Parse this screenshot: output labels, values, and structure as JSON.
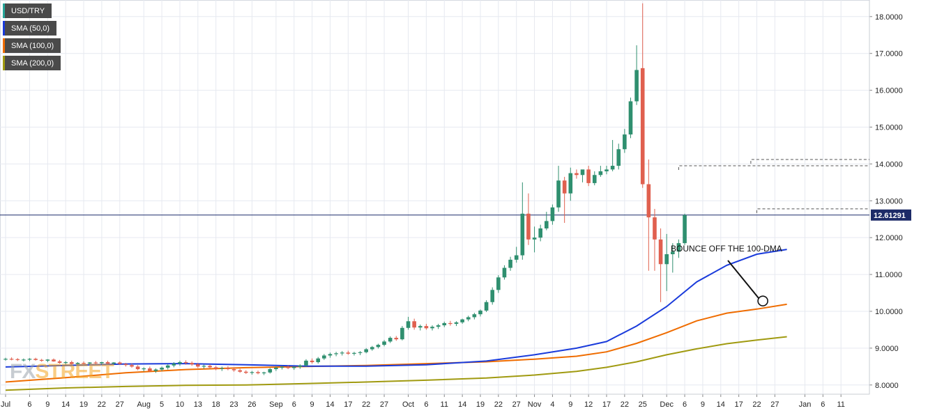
{
  "legend": {
    "items": [
      {
        "label": "USD/TRY",
        "color": "#26a69a"
      },
      {
        "label": "SMA (50,0)",
        "color": "#1a3bdb"
      },
      {
        "label": "SMA (100,0)",
        "color": "#ef6c00"
      },
      {
        "label": "SMA (200,0)",
        "color": "#a09a10"
      }
    ]
  },
  "logo": {
    "prefix": "FX",
    "suffix": "STREET"
  },
  "colors": {
    "up": "#2f8f6f",
    "down": "#e0604f",
    "grid": "#e6e9f0",
    "axis_text": "#222222",
    "price_line": "#1a2a6c",
    "price_label_bg": "#1d2b68"
  },
  "chart_data": {
    "type": "candlestick",
    "title": "",
    "xlabel": "",
    "ylabel": "",
    "ylim": [
      7.75,
      18.45
    ],
    "y_ticks": [
      "8.0000",
      "9.0000",
      "10.0000",
      "11.0000",
      "12.0000",
      "13.0000",
      "14.0000",
      "15.0000",
      "16.0000",
      "17.0000",
      "18.0000"
    ],
    "x_ticks": [
      {
        "label": "Jul",
        "index": 0
      },
      {
        "label": "6",
        "index": 4
      },
      {
        "label": "9",
        "index": 7
      },
      {
        "label": "14",
        "index": 10
      },
      {
        "label": "19",
        "index": 13
      },
      {
        "label": "22",
        "index": 16
      },
      {
        "label": "27",
        "index": 19
      },
      {
        "label": "Aug",
        "index": 23
      },
      {
        "label": "5",
        "index": 26
      },
      {
        "label": "10",
        "index": 29
      },
      {
        "label": "13",
        "index": 32
      },
      {
        "label": "18",
        "index": 35
      },
      {
        "label": "23",
        "index": 38
      },
      {
        "label": "26",
        "index": 41
      },
      {
        "label": "Sep",
        "index": 45
      },
      {
        "label": "6",
        "index": 48
      },
      {
        "label": "9",
        "index": 51
      },
      {
        "label": "14",
        "index": 54
      },
      {
        "label": "17",
        "index": 57
      },
      {
        "label": "22",
        "index": 60
      },
      {
        "label": "27",
        "index": 63
      },
      {
        "label": "Oct",
        "index": 67
      },
      {
        "label": "6",
        "index": 70
      },
      {
        "label": "11",
        "index": 73
      },
      {
        "label": "14",
        "index": 76
      },
      {
        "label": "19",
        "index": 79
      },
      {
        "label": "22",
        "index": 82
      },
      {
        "label": "27",
        "index": 85
      },
      {
        "label": "Nov",
        "index": 88
      },
      {
        "label": "4",
        "index": 91
      },
      {
        "label": "9",
        "index": 94
      },
      {
        "label": "12",
        "index": 97
      },
      {
        "label": "17",
        "index": 100
      },
      {
        "label": "22",
        "index": 103
      },
      {
        "label": "25",
        "index": 106
      },
      {
        "label": "Dec",
        "index": 110
      },
      {
        "label": "6",
        "index": 113
      },
      {
        "label": "9",
        "index": 116
      },
      {
        "label": "14",
        "index": 119
      },
      {
        "label": "17",
        "index": 122
      },
      {
        "label": "22",
        "index": 125
      },
      {
        "label": "27",
        "index": 128
      },
      {
        "label": "Jan",
        "index": 133
      },
      {
        "label": "6",
        "index": 136
      },
      {
        "label": "11",
        "index": 139
      }
    ],
    "current_price": "12.61291",
    "current_value": 12.6129,
    "resistance_levels": [
      {
        "value": 14.12,
        "from_index": 124
      },
      {
        "value": 13.95,
        "from_index": 112
      },
      {
        "value": 12.78,
        "from_index": 125
      }
    ],
    "annotation": {
      "text": "BOUNCE OFF THE 100-DMA",
      "index": 126,
      "value": 10.28
    },
    "candles": [
      [
        8.7,
        8.74,
        8.66,
        8.71
      ],
      [
        8.71,
        8.75,
        8.67,
        8.7
      ],
      [
        8.7,
        8.73,
        8.65,
        8.68
      ],
      [
        8.68,
        8.72,
        8.64,
        8.69
      ],
      [
        8.69,
        8.73,
        8.65,
        8.71
      ],
      [
        8.71,
        8.74,
        8.66,
        8.68
      ],
      [
        8.68,
        8.71,
        8.63,
        8.66
      ],
      [
        8.66,
        8.7,
        8.62,
        8.69
      ],
      [
        8.69,
        8.72,
        8.63,
        8.64
      ],
      [
        8.64,
        8.68,
        8.58,
        8.6
      ],
      [
        8.6,
        8.65,
        8.55,
        8.62
      ],
      [
        8.62,
        8.66,
        8.55,
        8.57
      ],
      [
        8.57,
        8.62,
        8.52,
        8.6
      ],
      [
        8.6,
        8.64,
        8.54,
        8.58
      ],
      [
        8.58,
        8.62,
        8.53,
        8.61
      ],
      [
        8.61,
        8.65,
        8.56,
        8.59
      ],
      [
        8.59,
        8.63,
        8.55,
        8.62
      ],
      [
        8.62,
        8.66,
        8.56,
        8.58
      ],
      [
        8.58,
        8.62,
        8.54,
        8.61
      ],
      [
        8.61,
        8.64,
        8.55,
        8.57
      ],
      [
        8.57,
        8.6,
        8.5,
        8.54
      ],
      [
        8.54,
        8.58,
        8.47,
        8.5
      ],
      [
        8.5,
        8.54,
        8.4,
        8.43
      ],
      [
        8.43,
        8.48,
        8.37,
        8.45
      ],
      [
        8.45,
        8.5,
        8.35,
        8.38
      ],
      [
        8.38,
        8.45,
        8.33,
        8.42
      ],
      [
        8.42,
        8.5,
        8.38,
        8.47
      ],
      [
        8.47,
        8.56,
        8.42,
        8.53
      ],
      [
        8.53,
        8.62,
        8.48,
        8.58
      ],
      [
        8.58,
        8.66,
        8.52,
        8.62
      ],
      [
        8.62,
        8.67,
        8.55,
        8.6
      ],
      [
        8.6,
        8.64,
        8.52,
        8.56
      ],
      [
        8.56,
        8.6,
        8.46,
        8.5
      ],
      [
        8.5,
        8.55,
        8.44,
        8.52
      ],
      [
        8.52,
        8.56,
        8.45,
        8.48
      ],
      [
        8.48,
        8.52,
        8.4,
        8.44
      ],
      [
        8.44,
        8.5,
        8.38,
        8.46
      ],
      [
        8.46,
        8.51,
        8.4,
        8.43
      ],
      [
        8.43,
        8.48,
        8.36,
        8.4
      ],
      [
        8.4,
        8.44,
        8.33,
        8.36
      ],
      [
        8.36,
        8.4,
        8.3,
        8.33
      ],
      [
        8.33,
        8.38,
        8.28,
        8.35
      ],
      [
        8.35,
        8.39,
        8.29,
        8.32
      ],
      [
        8.32,
        8.36,
        8.27,
        8.34
      ],
      [
        8.34,
        8.46,
        8.31,
        8.43
      ],
      [
        8.43,
        8.5,
        8.38,
        8.47
      ],
      [
        8.47,
        8.52,
        8.42,
        8.49
      ],
      [
        8.49,
        8.53,
        8.43,
        8.46
      ],
      [
        8.46,
        8.51,
        8.41,
        8.49
      ],
      [
        8.49,
        8.56,
        8.44,
        8.53
      ],
      [
        8.53,
        8.7,
        8.5,
        8.66
      ],
      [
        8.66,
        8.72,
        8.58,
        8.62
      ],
      [
        8.62,
        8.76,
        8.58,
        8.72
      ],
      [
        8.72,
        8.84,
        8.68,
        8.8
      ],
      [
        8.8,
        8.88,
        8.74,
        8.84
      ],
      [
        8.84,
        8.9,
        8.78,
        8.86
      ],
      [
        8.86,
        8.92,
        8.8,
        8.88
      ],
      [
        8.88,
        8.93,
        8.82,
        8.85
      ],
      [
        8.85,
        8.9,
        8.8,
        8.87
      ],
      [
        8.87,
        8.92,
        8.81,
        8.89
      ],
      [
        8.89,
        9.0,
        8.86,
        8.97
      ],
      [
        8.97,
        9.06,
        8.93,
        9.03
      ],
      [
        9.03,
        9.12,
        8.99,
        9.09
      ],
      [
        9.09,
        9.22,
        9.05,
        9.18
      ],
      [
        9.18,
        9.32,
        9.14,
        9.28
      ],
      [
        9.28,
        9.33,
        9.2,
        9.24
      ],
      [
        9.24,
        9.6,
        9.21,
        9.55
      ],
      [
        9.55,
        9.85,
        9.5,
        9.73
      ],
      [
        9.73,
        9.8,
        9.5,
        9.56
      ],
      [
        9.56,
        9.64,
        9.48,
        9.6
      ],
      [
        9.6,
        9.66,
        9.5,
        9.54
      ],
      [
        9.54,
        9.62,
        9.48,
        9.58
      ],
      [
        9.58,
        9.66,
        9.52,
        9.62
      ],
      [
        9.62,
        9.72,
        9.57,
        9.68
      ],
      [
        9.68,
        9.74,
        9.61,
        9.66
      ],
      [
        9.66,
        9.73,
        9.6,
        9.7
      ],
      [
        9.7,
        9.8,
        9.66,
        9.78
      ],
      [
        9.78,
        9.88,
        9.73,
        9.84
      ],
      [
        9.84,
        9.96,
        9.78,
        9.92
      ],
      [
        9.92,
        10.05,
        9.86,
        10.02
      ],
      [
        10.02,
        10.3,
        9.98,
        10.25
      ],
      [
        10.25,
        10.65,
        10.18,
        10.58
      ],
      [
        10.58,
        10.98,
        10.5,
        10.92
      ],
      [
        10.92,
        11.25,
        10.86,
        11.18
      ],
      [
        11.18,
        11.48,
        11.1,
        11.4
      ],
      [
        11.4,
        11.75,
        11.32,
        11.52
      ],
      [
        11.52,
        13.5,
        11.4,
        12.65
      ],
      [
        12.65,
        13.2,
        11.8,
        11.95
      ],
      [
        11.95,
        12.3,
        11.6,
        12.0
      ],
      [
        12.0,
        12.35,
        11.9,
        12.25
      ],
      [
        12.25,
        12.7,
        12.2,
        12.45
      ],
      [
        12.45,
        12.9,
        12.35,
        12.82
      ],
      [
        12.82,
        13.95,
        12.7,
        13.55
      ],
      [
        13.55,
        13.65,
        12.4,
        13.2
      ],
      [
        13.2,
        13.9,
        13.0,
        13.75
      ],
      [
        13.75,
        13.85,
        13.6,
        13.7
      ],
      [
        13.7,
        13.8,
        13.5,
        13.85
      ],
      [
        13.85,
        13.95,
        13.4,
        13.48
      ],
      [
        13.48,
        13.8,
        13.42,
        13.7
      ],
      [
        13.7,
        13.95,
        13.65,
        13.8
      ],
      [
        13.8,
        13.95,
        13.72,
        13.85
      ],
      [
        13.85,
        14.65,
        13.8,
        13.95
      ],
      [
        13.95,
        14.55,
        13.85,
        14.4
      ],
      [
        14.4,
        14.95,
        14.3,
        14.8
      ],
      [
        14.8,
        15.8,
        14.7,
        15.7
      ],
      [
        15.7,
        17.22,
        15.6,
        16.55
      ],
      [
        16.6,
        18.36,
        13.35,
        13.45
      ],
      [
        13.45,
        14.12,
        11.1,
        12.55
      ],
      [
        12.55,
        12.78,
        11.1,
        11.95
      ],
      [
        11.95,
        12.25,
        10.25,
        11.28
      ],
      [
        11.28,
        12.1,
        10.55,
        11.55
      ],
      [
        11.55,
        11.85,
        11.05,
        11.62
      ],
      [
        11.62,
        11.95,
        11.45,
        11.85
      ],
      [
        11.85,
        12.65,
        11.8,
        12.61
      ]
    ],
    "sma50": [
      [
        0,
        8.49
      ],
      [
        10,
        8.53
      ],
      [
        20,
        8.57
      ],
      [
        30,
        8.58
      ],
      [
        40,
        8.55
      ],
      [
        50,
        8.51
      ],
      [
        60,
        8.51
      ],
      [
        70,
        8.55
      ],
      [
        80,
        8.65
      ],
      [
        88,
        8.82
      ],
      [
        95,
        9.0
      ],
      [
        100,
        9.18
      ],
      [
        105,
        9.6
      ],
      [
        110,
        10.13
      ],
      [
        115,
        10.8
      ],
      [
        120,
        11.25
      ],
      [
        125,
        11.55
      ],
      [
        130,
        11.68
      ]
    ],
    "sma100": [
      [
        0,
        8.08
      ],
      [
        10,
        8.2
      ],
      [
        20,
        8.33
      ],
      [
        30,
        8.42
      ],
      [
        40,
        8.47
      ],
      [
        50,
        8.5
      ],
      [
        60,
        8.53
      ],
      [
        70,
        8.58
      ],
      [
        80,
        8.63
      ],
      [
        88,
        8.7
      ],
      [
        95,
        8.78
      ],
      [
        100,
        8.9
      ],
      [
        105,
        9.13
      ],
      [
        110,
        9.42
      ],
      [
        115,
        9.74
      ],
      [
        120,
        9.95
      ],
      [
        125,
        10.06
      ],
      [
        130,
        10.19
      ]
    ],
    "sma200": [
      [
        0,
        7.86
      ],
      [
        10,
        7.92
      ],
      [
        20,
        7.96
      ],
      [
        30,
        7.99
      ],
      [
        40,
        8.0
      ],
      [
        50,
        8.04
      ],
      [
        60,
        8.08
      ],
      [
        70,
        8.13
      ],
      [
        80,
        8.19
      ],
      [
        88,
        8.27
      ],
      [
        95,
        8.37
      ],
      [
        100,
        8.48
      ],
      [
        105,
        8.63
      ],
      [
        110,
        8.82
      ],
      [
        115,
        8.98
      ],
      [
        120,
        9.12
      ],
      [
        125,
        9.22
      ],
      [
        130,
        9.31
      ]
    ]
  }
}
